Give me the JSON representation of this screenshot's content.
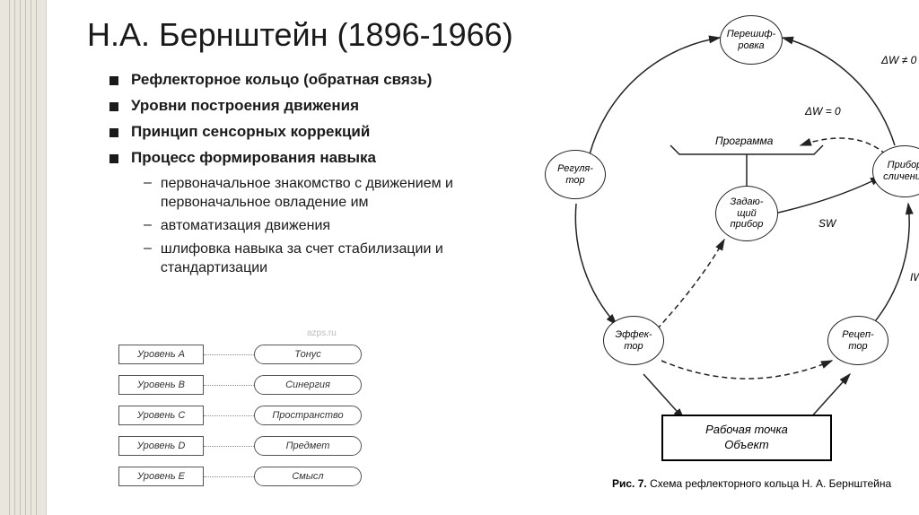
{
  "title": "Н.А. Бернштейн (1896-1966)",
  "bullets": {
    "b1": "Рефлекторное кольцо (обратная связь)",
    "b2": "Уровни построения движения",
    "b3": "Принцип сенсорных коррекций",
    "b4": "Процесс формирования навыка",
    "s1": "первоначальное знакомство с движением и первоначальное овладение им",
    "s2": "автоматизация движения",
    "s3": " шлифовка навыка за счет стабилизации и стандартизации"
  },
  "levels": [
    {
      "box": "Уровень A",
      "pill": "Тонус"
    },
    {
      "box": "Уровень B",
      "pill": "Синергия"
    },
    {
      "box": "Уровень C",
      "pill": "Пространство"
    },
    {
      "box": "Уровень D",
      "pill": "Предмет"
    },
    {
      "box": "Уровень E",
      "pill": "Смысл"
    }
  ],
  "diagram": {
    "nodes": {
      "pereshif": "Перешиф-\nровка",
      "regulator": "Регуля-\nтор",
      "pribor": "Прибор\nсличения",
      "zadaush": "Задаю-\nщий\nприбор",
      "effector": "Эффек-\nтор",
      "receptor": "Рецеп-\nтор"
    },
    "labels": {
      "programma": "Программа",
      "dw_ne": "ΔW ≠ 0",
      "dw_eq": "ΔW = 0",
      "sw": "SW",
      "iw": "IW"
    },
    "workbox": "Рабочая точка\nОбъект",
    "caption_bold": "Рис. 7.",
    "caption_rest": " Схема рефлекторного кольца Н. А. Бернштейна",
    "colors": {
      "stroke": "#222222",
      "bg": "#ffffff"
    }
  },
  "sidebar": {
    "bg": "#e8e6dd",
    "stripes": [
      10,
      16,
      22,
      28,
      34,
      40
    ]
  }
}
